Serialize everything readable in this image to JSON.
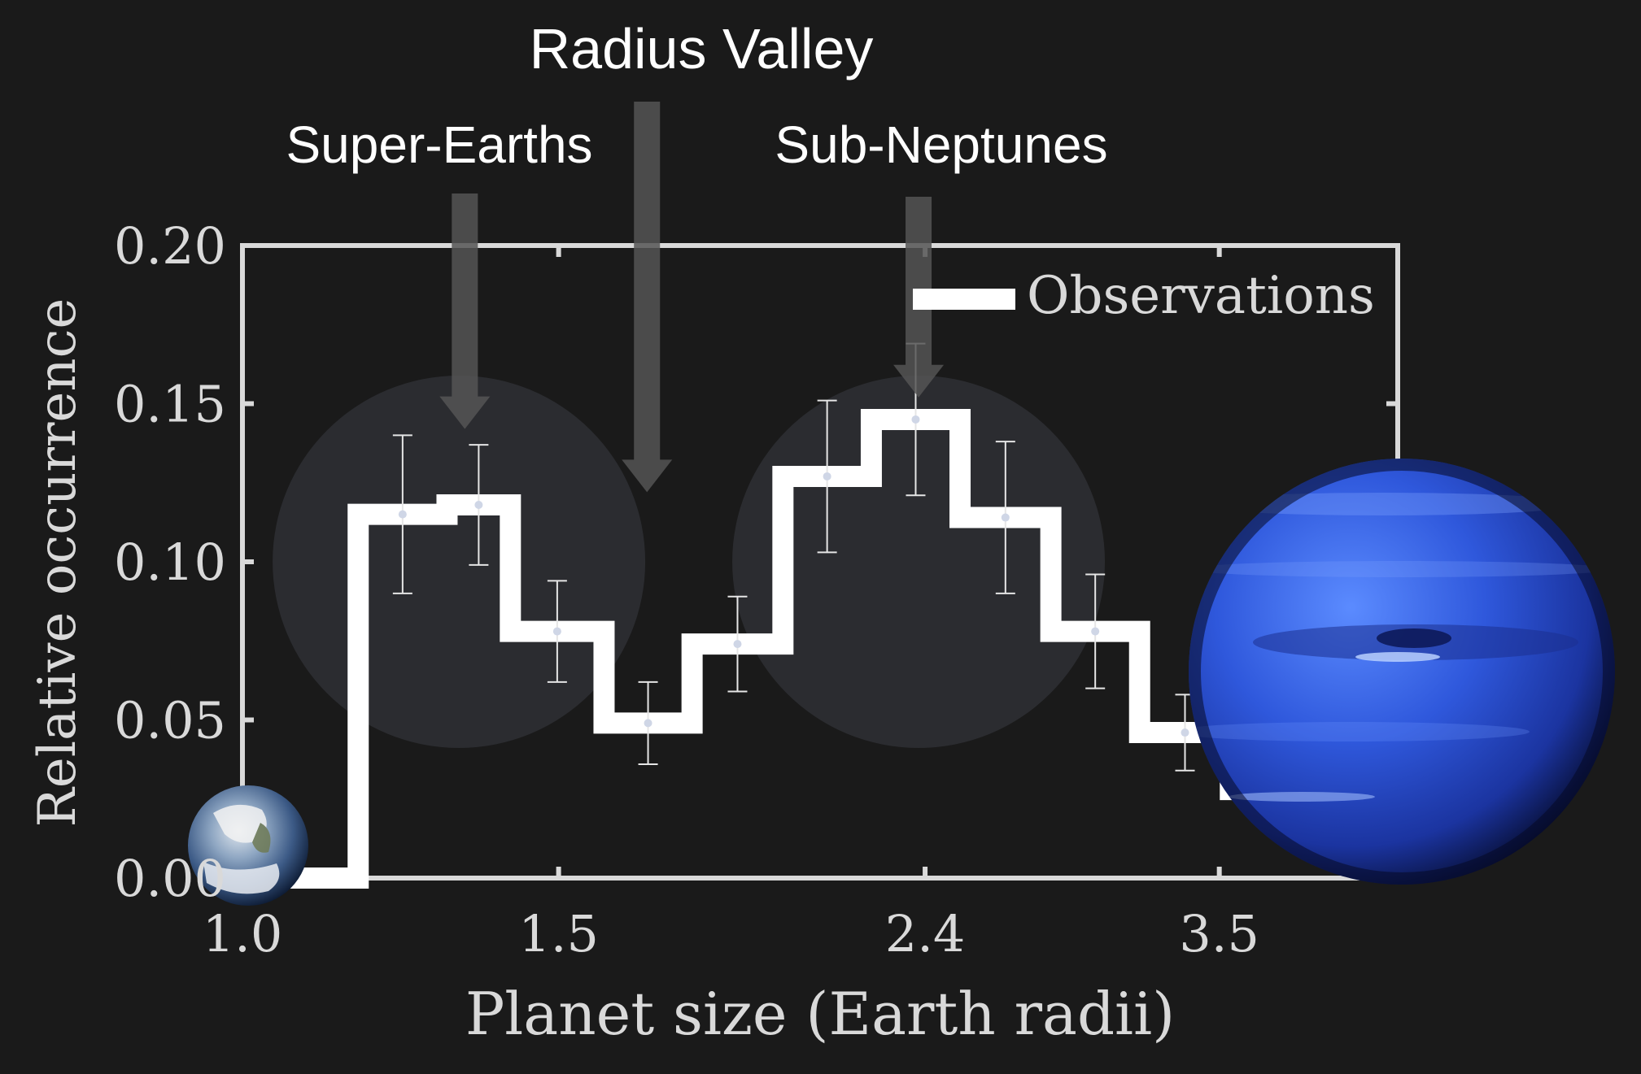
{
  "chart_data": {
    "type": "bar",
    "title": "Radius Valley",
    "xlabel": "Planet size (Earth radii)",
    "ylabel": "Relative occurrence",
    "x_scale": "log",
    "xlim": [
      1.0,
      4.4
    ],
    "ylim": [
      0,
      0.2
    ],
    "x_ticks": [
      {
        "value": 1.0,
        "label": "1.0"
      },
      {
        "value": 1.5,
        "label": "1.5"
      },
      {
        "value": 2.4,
        "label": "2.4"
      },
      {
        "value": 3.5,
        "label": "3.5"
      }
    ],
    "y_ticks": [
      {
        "value": 0.0,
        "label": "0.00"
      },
      {
        "value": 0.05,
        "label": "0.05"
      },
      {
        "value": 0.1,
        "label": "0.10"
      },
      {
        "value": 0.15,
        "label": "0.15"
      },
      {
        "value": 0.2,
        "label": "0.20"
      }
    ],
    "legend": {
      "entries": [
        "Observations"
      ],
      "position": "top-right"
    },
    "series": [
      {
        "name": "Observations",
        "bins": [
          {
            "x_lo": 1.0,
            "x_hi": 1.16,
            "y": 0.0,
            "err": null
          },
          {
            "x_lo": 1.16,
            "x_hi": 1.3,
            "y": 0.115,
            "err": 0.025
          },
          {
            "x_lo": 1.3,
            "x_hi": 1.41,
            "y": 0.118,
            "err": 0.019
          },
          {
            "x_lo": 1.41,
            "x_hi": 1.59,
            "y": 0.078,
            "err": 0.016
          },
          {
            "x_lo": 1.59,
            "x_hi": 1.78,
            "y": 0.049,
            "err": 0.013
          },
          {
            "x_lo": 1.78,
            "x_hi": 2.0,
            "y": 0.074,
            "err": 0.015
          },
          {
            "x_lo": 2.0,
            "x_hi": 2.24,
            "y": 0.127,
            "err": 0.024
          },
          {
            "x_lo": 2.24,
            "x_hi": 2.51,
            "y": 0.145,
            "err": 0.024
          },
          {
            "x_lo": 2.51,
            "x_hi": 2.82,
            "y": 0.114,
            "err": 0.024
          },
          {
            "x_lo": 2.82,
            "x_hi": 3.16,
            "y": 0.078,
            "err": 0.018
          },
          {
            "x_lo": 3.16,
            "x_hi": 3.55,
            "y": 0.046,
            "err": 0.012
          },
          {
            "x_lo": 3.55,
            "x_hi": 3.98,
            "y": 0.028,
            "err": 0.009
          },
          {
            "x_lo": 3.98,
            "x_hi": 4.4,
            "y": 0.015,
            "err": 0.006
          }
        ]
      }
    ],
    "annotations": [
      {
        "text": "Radius Valley",
        "x": 1.68,
        "arrow_tip_y": 0.122
      },
      {
        "text": "Super-Earths",
        "x": 1.33,
        "arrow_tip_y": 0.142
      },
      {
        "text": "Sub-Neptunes",
        "x": 2.38,
        "arrow_tip_y": 0.152
      }
    ],
    "highlight_regions": [
      {
        "center_x": 1.32,
        "center_y": 0.1
      },
      {
        "center_x": 2.38,
        "center_y": 0.1
      }
    ],
    "images": [
      {
        "name": "earth-icon",
        "near_x": 1.02,
        "near_y": 0.01
      },
      {
        "name": "neptune-icon",
        "near_x": 3.9,
        "near_y": 0.065
      }
    ],
    "colors": {
      "background": "#1a1a1a",
      "axes": "#d9d9d9",
      "histogram": "#ffffff",
      "arrows": "#555555",
      "highlight": "#2b2c30"
    }
  }
}
